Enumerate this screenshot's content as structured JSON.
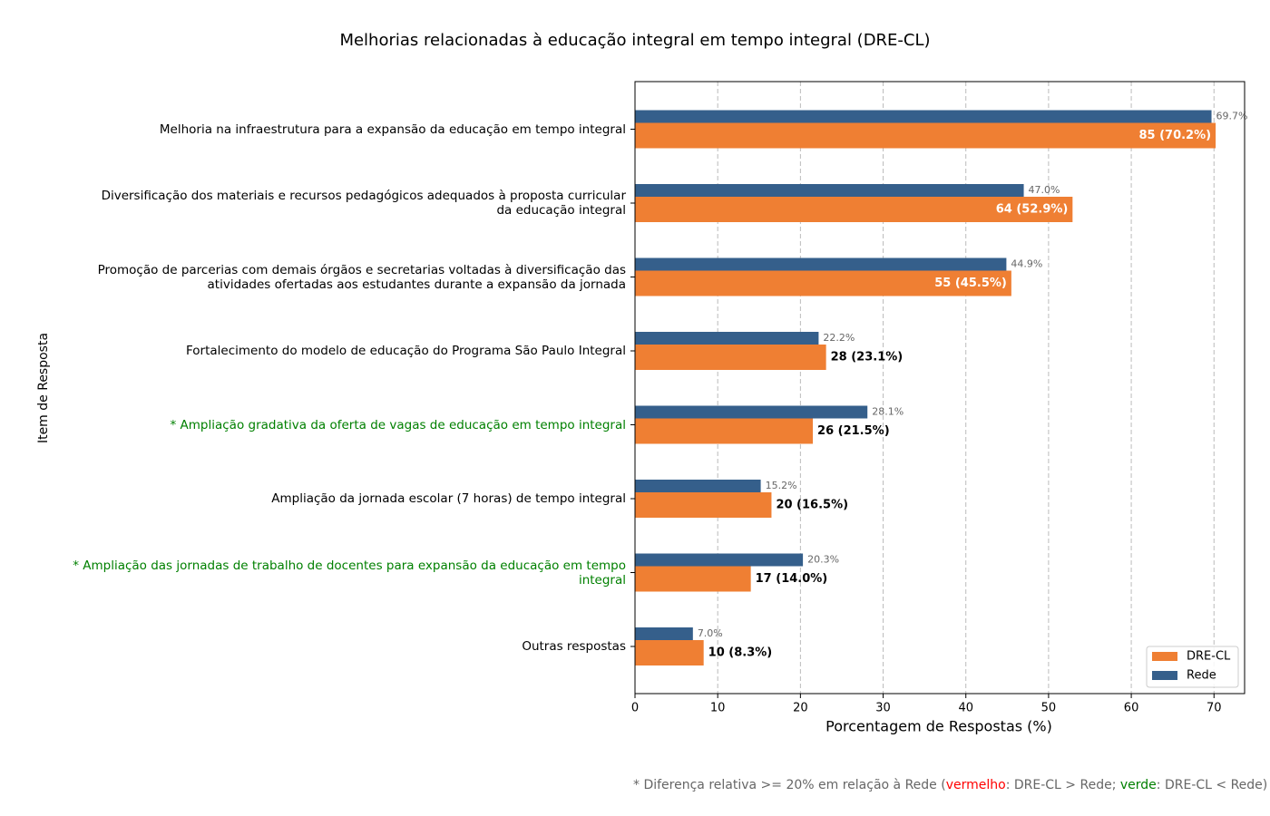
{
  "chart_data": {
    "type": "barh",
    "title": "Melhorias relacionadas à educação integral em tempo integral (DRE-CL)",
    "x_label": "Porcentagem de Respostas (%)",
    "y_label": "Item de Resposta",
    "categories": [
      "Melhoria na infraestrutura para a expansão da educação em tempo integral",
      "Diversificação dos materiais e recursos pedagógicos adequados à proposta curricular\nda educação integral",
      "Promoção de parcerias com demais órgãos e secretarias voltadas à diversificação das\natividades ofertadas aos estudantes durante a expansão da jornada",
      "Fortalecimento do modelo de educação do Programa São Paulo Integral",
      "* Ampliação gradativa da oferta de vagas de educação em tempo integral",
      "Ampliação da jornada escolar (7 horas) de tempo integral",
      "* Ampliação das jornadas de trabalho de docentes para expansão da educação em tempo\nintegral",
      "Outras respostas"
    ],
    "category_colors": [
      "#000000",
      "#000000",
      "#000000",
      "#000000",
      "#008000",
      "#000000",
      "#008000",
      "#000000"
    ],
    "series": [
      {
        "name": "DRE-CL",
        "color": "#ef7f33",
        "values": [
          70.2,
          52.9,
          45.5,
          23.1,
          21.5,
          16.5,
          14.0,
          8.3
        ],
        "value_labels": [
          "85 (70.2%)",
          "64 (52.9%)",
          "55 (45.5%)",
          "28 (23.1%)",
          "26 (21.5%)",
          "20 (16.5%)",
          "17 (14.0%)",
          "10 (8.3%)"
        ]
      },
      {
        "name": "Rede",
        "color": "#355f8b",
        "values": [
          69.7,
          47.0,
          44.9,
          22.2,
          28.1,
          15.2,
          20.3,
          7.0
        ],
        "value_labels": [
          "69.7%",
          "47.0%",
          "44.9%",
          "22.2%",
          "28.1%",
          "15.2%",
          "20.3%",
          "7.0%"
        ]
      }
    ],
    "xlim": [
      0,
      73.7
    ],
    "xticks": [
      0,
      10,
      20,
      30,
      40,
      50,
      60,
      70
    ],
    "grid": true,
    "legend": "lower right",
    "footnote": [
      {
        "text": "* Diferença relativa >= 20% em relação à Rede (",
        "color": "#666666"
      },
      {
        "text": "vermelho",
        "color": "#ff0000"
      },
      {
        "text": ": DRE-CL > Rede; ",
        "color": "#666666"
      },
      {
        "text": "verde",
        "color": "#008000"
      },
      {
        "text": ": DRE-CL < Rede)",
        "color": "#666666"
      }
    ]
  }
}
